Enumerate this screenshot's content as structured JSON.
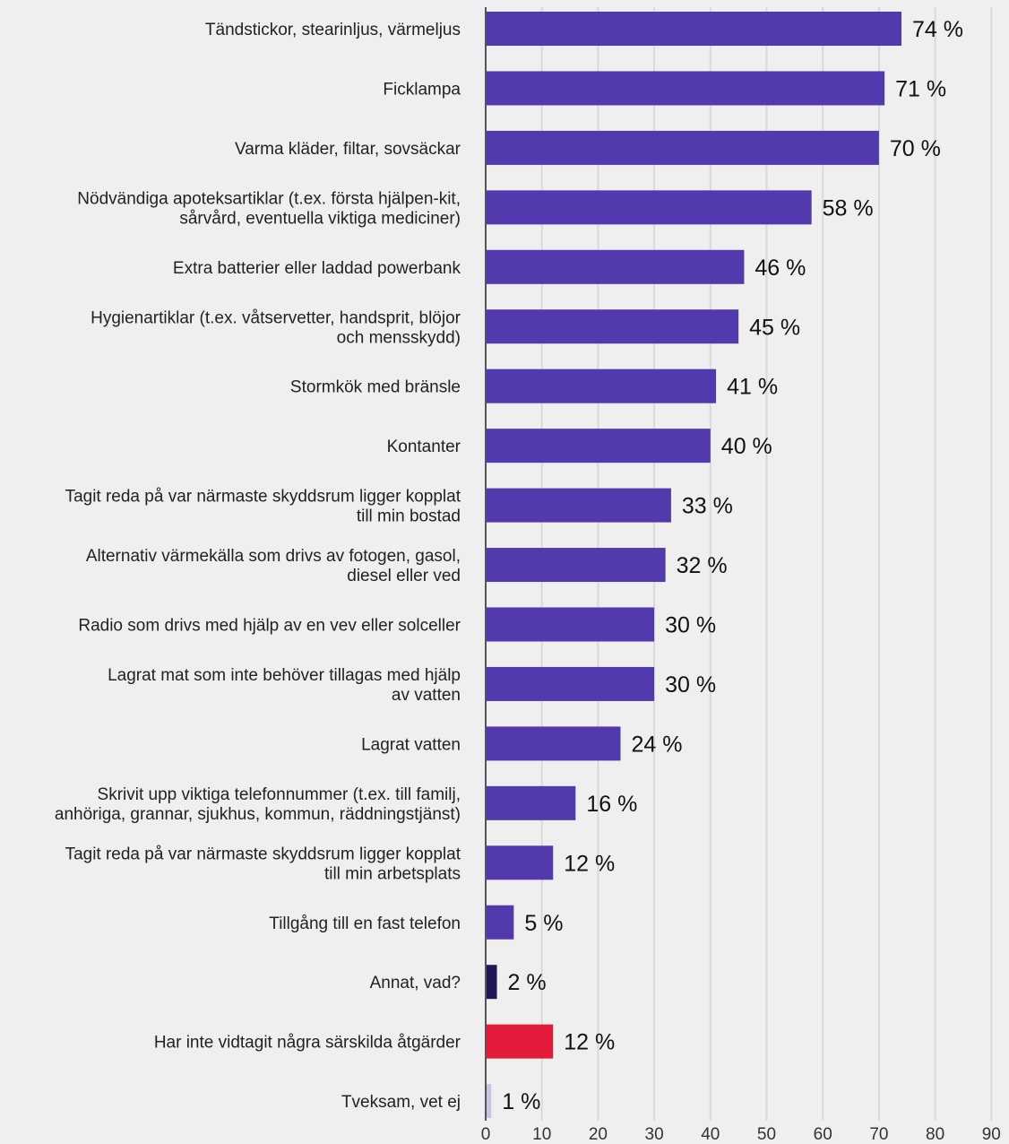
{
  "chart_data": {
    "type": "bar",
    "orientation": "horizontal",
    "title": "",
    "xlabel": "",
    "ylabel": "",
    "xlim": [
      0,
      90
    ],
    "ticks": [
      0,
      10,
      20,
      30,
      40,
      50,
      60,
      70,
      80,
      90
    ],
    "tick_labels": [
      "0",
      "10",
      "20",
      "30",
      "40",
      "50",
      "60",
      "70",
      "80",
      "90"
    ],
    "grid": true,
    "legend": "none",
    "colors": {
      "default": "#5239ad",
      "other": "#221659",
      "none": "#e41a3b",
      "unsure": "#c9c4e6",
      "grid": "#d9d9d9",
      "axis": "#555555"
    },
    "categories": [
      {
        "lines": [
          "Tändstickor, stearinljus, värmeljus"
        ],
        "value": 74,
        "value_label": "74 %",
        "color_key": "default"
      },
      {
        "lines": [
          "Ficklampa"
        ],
        "value": 71,
        "value_label": "71 %",
        "color_key": "default"
      },
      {
        "lines": [
          "Varma kläder, filtar, sovsäckar"
        ],
        "value": 70,
        "value_label": "70 %",
        "color_key": "default"
      },
      {
        "lines": [
          "Nödvändiga apoteksartiklar (t.ex. första hjälpen-kit,",
          "sårvård, eventuella viktiga mediciner)"
        ],
        "value": 58,
        "value_label": "58 %",
        "color_key": "default"
      },
      {
        "lines": [
          "Extra batterier eller laddad powerbank"
        ],
        "value": 46,
        "value_label": "46 %",
        "color_key": "default"
      },
      {
        "lines": [
          "Hygienartiklar (t.ex. våtservetter, handsprit, blöjor",
          "och mensskydd)"
        ],
        "value": 45,
        "value_label": "45 %",
        "color_key": "default"
      },
      {
        "lines": [
          "Stormkök med bränsle"
        ],
        "value": 41,
        "value_label": "41 %",
        "color_key": "default"
      },
      {
        "lines": [
          "Kontanter"
        ],
        "value": 40,
        "value_label": "40 %",
        "color_key": "default"
      },
      {
        "lines": [
          "Tagit reda på var närmaste skyddsrum ligger kopplat",
          "till min bostad"
        ],
        "value": 33,
        "value_label": "33 %",
        "color_key": "default"
      },
      {
        "lines": [
          "Alternativ värmekälla som drivs av fotogen, gasol,",
          "diesel eller ved"
        ],
        "value": 32,
        "value_label": "32 %",
        "color_key": "default"
      },
      {
        "lines": [
          "Radio som drivs med hjälp av en vev eller solceller"
        ],
        "value": 30,
        "value_label": "30 %",
        "color_key": "default"
      },
      {
        "lines": [
          "Lagrat mat som inte behöver tillagas med hjälp",
          "av vatten"
        ],
        "value": 30,
        "value_label": "30 %",
        "color_key": "default"
      },
      {
        "lines": [
          "Lagrat vatten"
        ],
        "value": 24,
        "value_label": "24 %",
        "color_key": "default"
      },
      {
        "lines": [
          "Skrivit upp viktiga telefonnummer (t.ex. till familj,",
          "anhöriga, grannar, sjukhus, kommun, räddningstjänst)"
        ],
        "value": 16,
        "value_label": "16 %",
        "color_key": "default"
      },
      {
        "lines": [
          "Tagit reda på var närmaste skyddsrum ligger kopplat",
          "till min arbetsplats"
        ],
        "value": 12,
        "value_label": "12 %",
        "color_key": "default"
      },
      {
        "lines": [
          "Tillgång till en fast telefon"
        ],
        "value": 5,
        "value_label": "5 %",
        "color_key": "default"
      },
      {
        "lines": [
          "Annat, vad?"
        ],
        "value": 2,
        "value_label": "2 %",
        "color_key": "other"
      },
      {
        "lines": [
          "Har inte vidtagit några särskilda åtgärder"
        ],
        "value": 12,
        "value_label": "12 %",
        "color_key": "none"
      },
      {
        "lines": [
          "Tveksam, vet ej"
        ],
        "value": 1,
        "value_label": "1 %",
        "color_key": "unsure"
      }
    ]
  }
}
